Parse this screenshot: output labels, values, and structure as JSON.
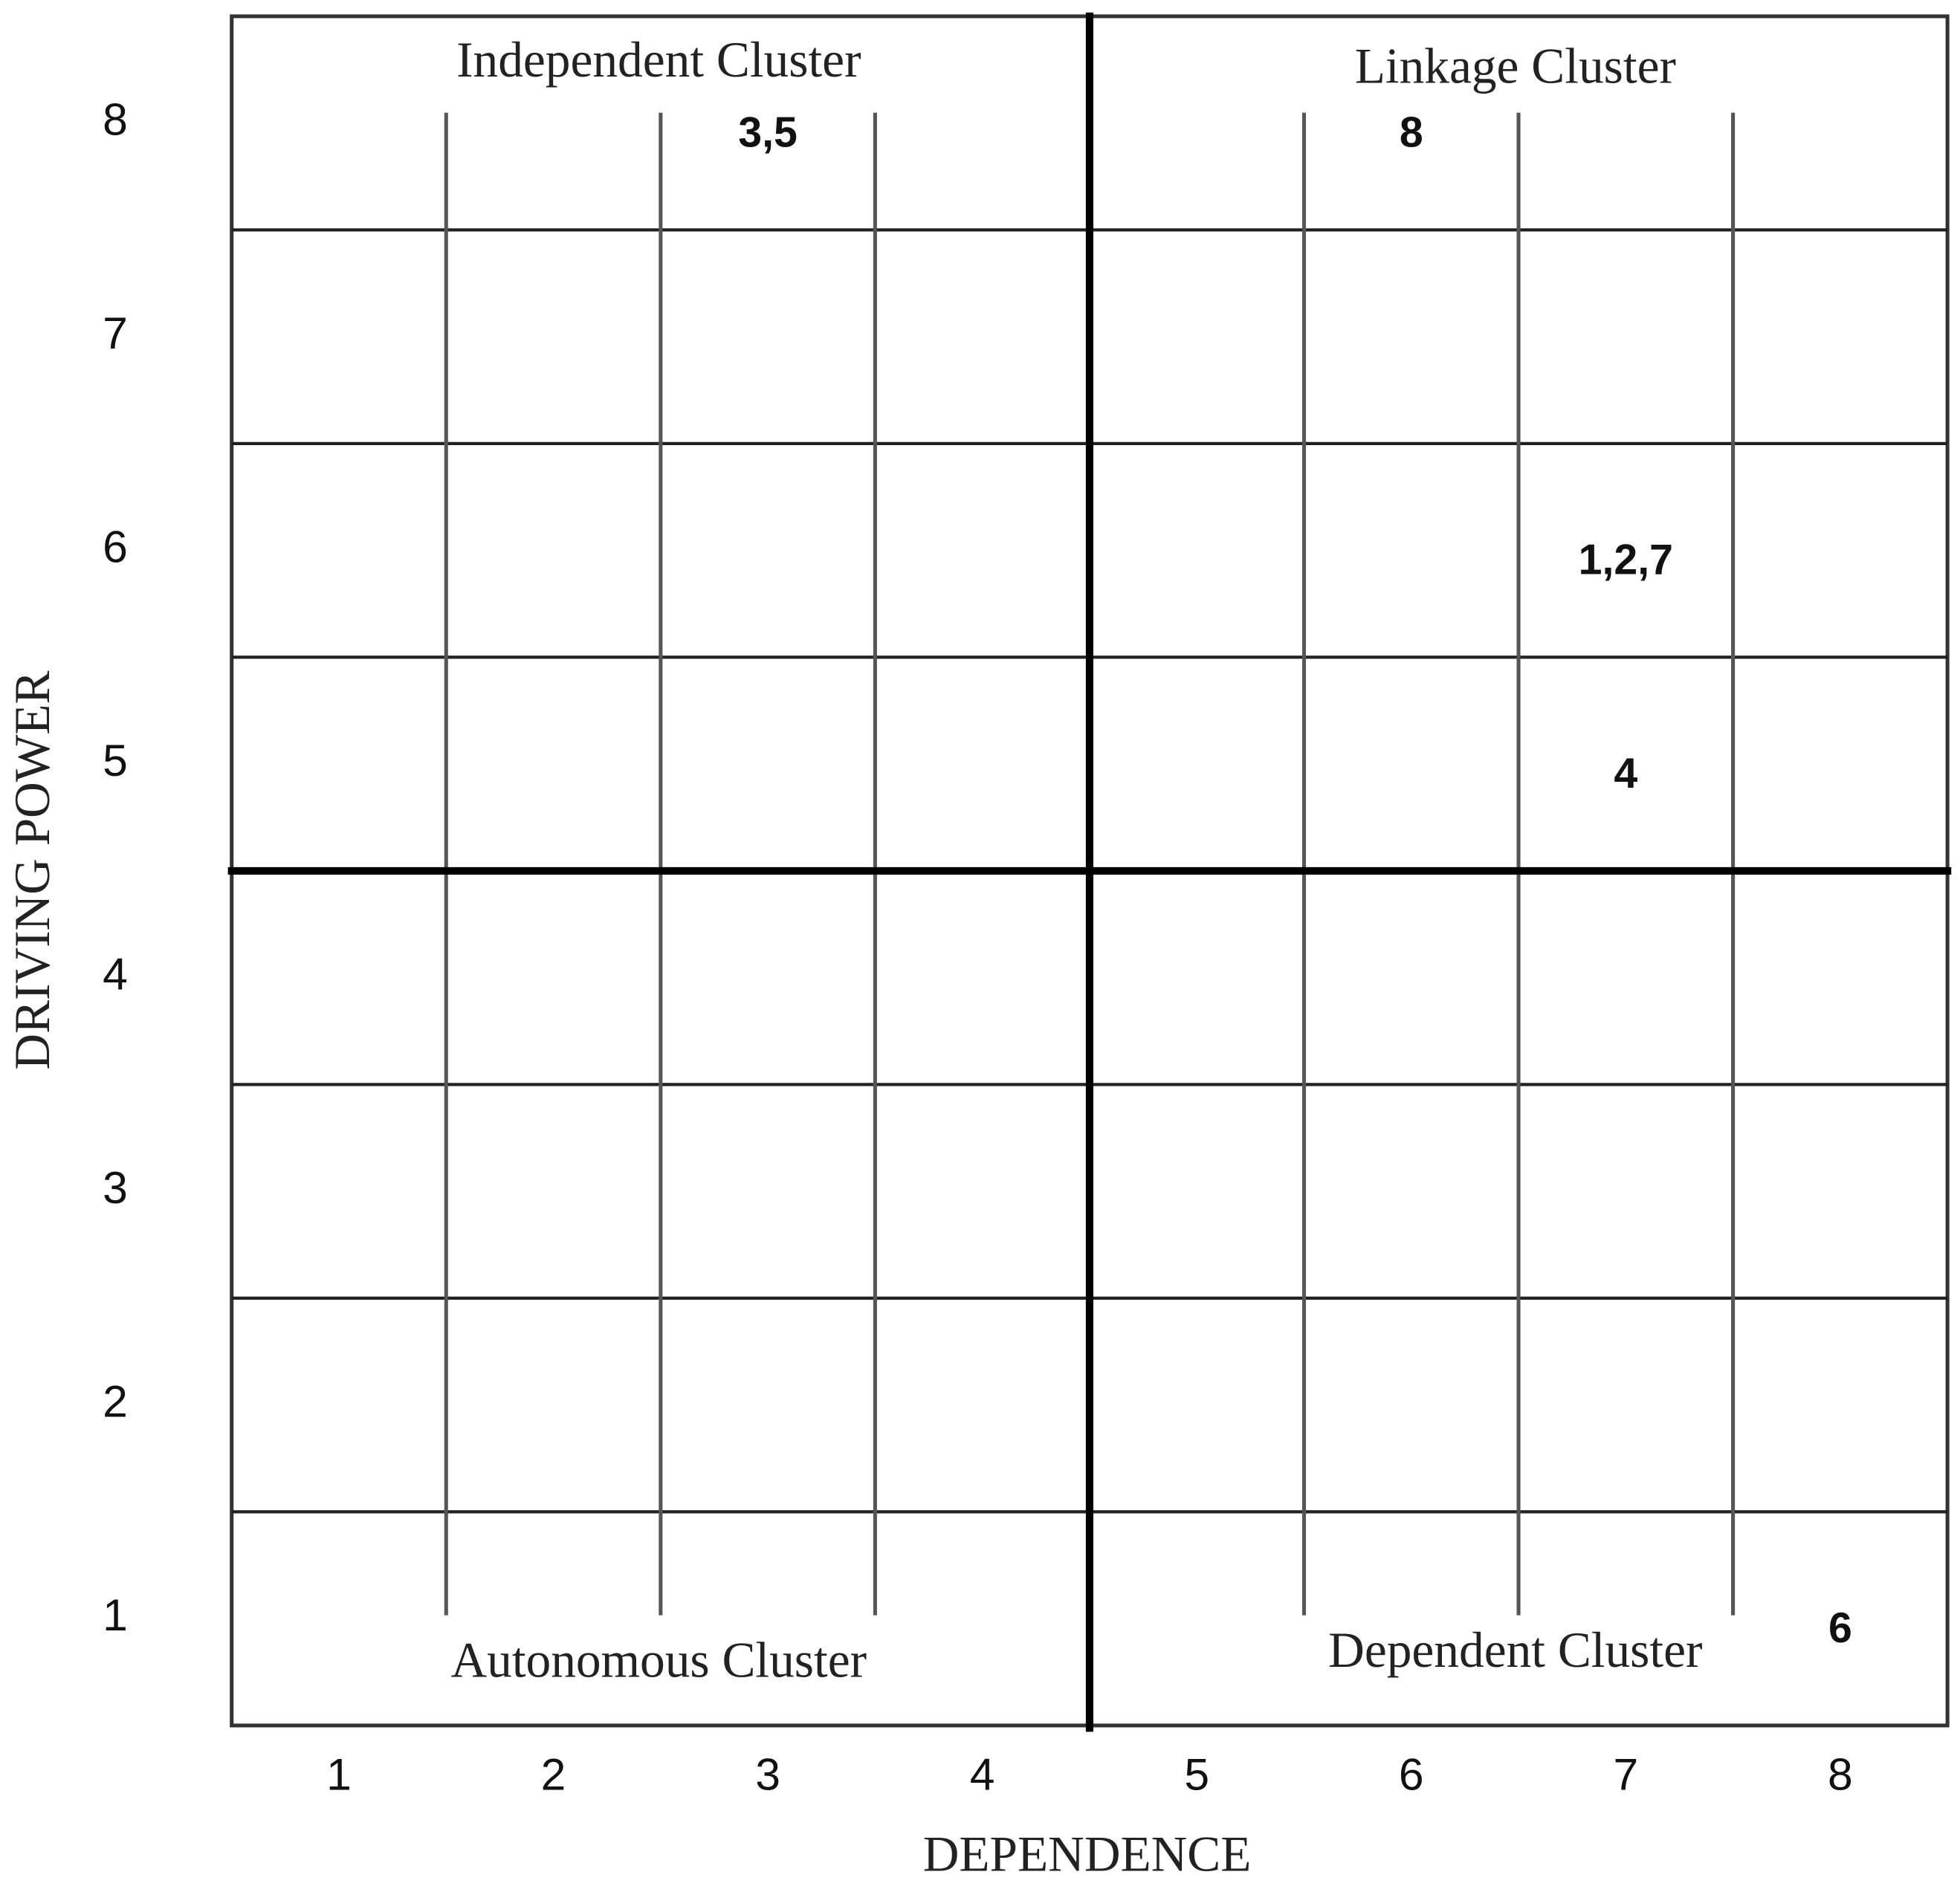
{
  "chart_data": {
    "type": "scatter",
    "x_label": "DEPENDENCE",
    "y_label": "DRIVING POWER",
    "xlim": [
      0.5,
      8.5
    ],
    "ylim": [
      0.5,
      8.5
    ],
    "xticks": [
      1,
      2,
      3,
      4,
      5,
      6,
      7,
      8
    ],
    "yticks": [
      1,
      2,
      3,
      4,
      5,
      6,
      7,
      8
    ],
    "xgrid": [
      1.5,
      2.5,
      3.5,
      4.5,
      5.5,
      6.5,
      7.5
    ],
    "ygrid": [
      1.5,
      2.5,
      3.5,
      4.5,
      5.5,
      6.5,
      7.5
    ],
    "divider": [
      4.5,
      4.5
    ],
    "points": [
      {
        "label": "3,5",
        "x": 3,
        "y": 8
      },
      {
        "label": "8",
        "x": 6,
        "y": 8
      },
      {
        "label": "1,2,7",
        "x": 7,
        "y": 6
      },
      {
        "label": "4",
        "x": 7,
        "y": 5
      },
      {
        "label": "6",
        "x": 8,
        "y": 1
      }
    ],
    "annotations": [
      "Independent Cluster",
      "Linkage Cluster",
      "Autonomous Cluster",
      "Dependent Cluster"
    ]
  }
}
